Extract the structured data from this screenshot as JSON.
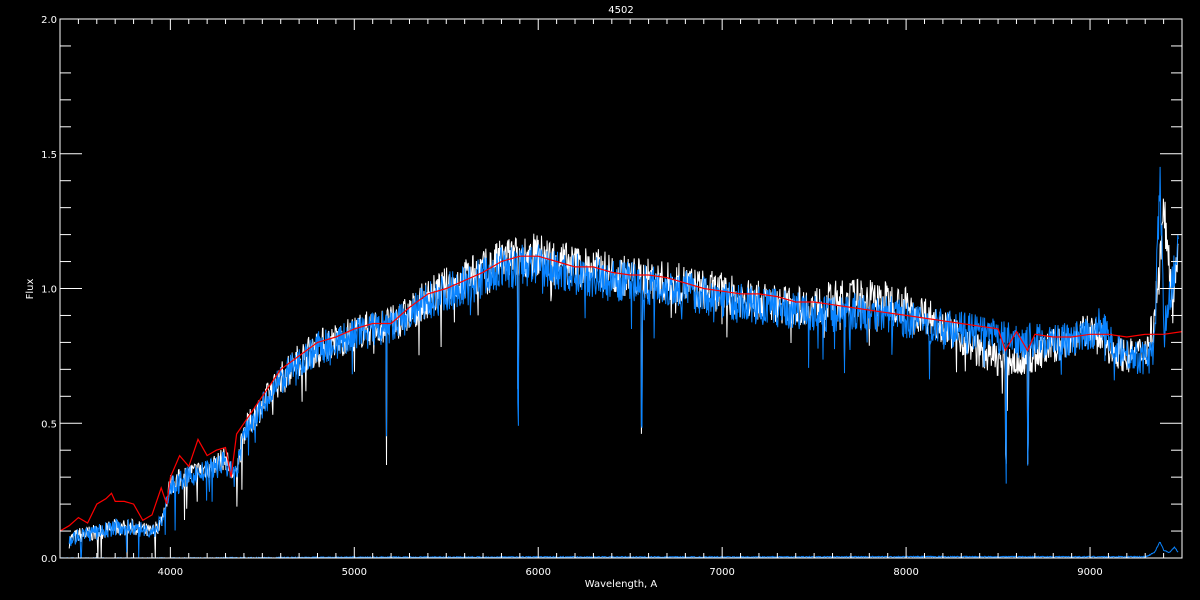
{
  "chart_data": {
    "type": "line",
    "title": "4502",
    "xlabel": "Wavelength, A",
    "ylabel": "Flux",
    "xlim": [
      3400,
      9500
    ],
    "ylim": [
      0.0,
      2.0
    ],
    "xticks": [
      4000,
      5000,
      6000,
      7000,
      8000,
      9000
    ],
    "xtick_labels": [
      "4000",
      "5000",
      "6000",
      "7000",
      "8000",
      "9000"
    ],
    "yticks": [
      0.0,
      0.5,
      1.0,
      1.5,
      2.0
    ],
    "ytick_labels": [
      "0.0",
      "0.5",
      "1.0",
      "1.5",
      "2.0"
    ],
    "x_minor_step": 100,
    "y_minor_step": 0.1,
    "grid": false,
    "background": "#000000",
    "axis_color": "#ffffff",
    "series": [
      {
        "color": "#ffffff",
        "x": [
          3450,
          3500,
          3600,
          3700,
          3800,
          3900,
          3950,
          4000,
          4100,
          4200,
          4300,
          4350,
          4400,
          4500,
          4600,
          4700,
          4800,
          4900,
          5000,
          5100,
          5200,
          5300,
          5400,
          5500,
          5600,
          5700,
          5800,
          5900,
          6000,
          6100,
          6200,
          6300,
          6400,
          6500,
          6600,
          6700,
          6800,
          6900,
          7000,
          7100,
          7200,
          7300,
          7400,
          7500,
          7600,
          7700,
          7800,
          7900,
          8000,
          8100,
          8200,
          8300,
          8400,
          8500,
          8600,
          8700,
          8800,
          8900,
          9000,
          9100,
          9200,
          9300,
          9350,
          9400,
          9450,
          9480
        ],
        "y": [
          0.07,
          0.09,
          0.1,
          0.12,
          0.12,
          0.1,
          0.14,
          0.28,
          0.32,
          0.34,
          0.38,
          0.3,
          0.48,
          0.58,
          0.68,
          0.75,
          0.8,
          0.82,
          0.85,
          0.87,
          0.88,
          0.92,
          0.98,
          1.02,
          1.05,
          1.08,
          1.12,
          1.14,
          1.14,
          1.12,
          1.1,
          1.09,
          1.07,
          1.06,
          1.05,
          1.04,
          1.03,
          1.01,
          1.0,
          0.98,
          0.97,
          0.96,
          0.95,
          0.95,
          0.97,
          0.98,
          0.98,
          0.97,
          0.95,
          0.92,
          0.88,
          0.83,
          0.78,
          0.75,
          0.74,
          0.76,
          0.8,
          0.82,
          0.86,
          0.8,
          0.76,
          0.78,
          0.9,
          1.3,
          1.0,
          1.2
        ]
      },
      {
        "color": "#0a84ff",
        "x": [
          3450,
          3500,
          3600,
          3700,
          3800,
          3900,
          3950,
          4000,
          4100,
          4200,
          4300,
          4350,
          4400,
          4500,
          4600,
          4700,
          4800,
          4900,
          5000,
          5100,
          5200,
          5300,
          5400,
          5500,
          5600,
          5700,
          5800,
          5900,
          6000,
          6100,
          6200,
          6300,
          6400,
          6500,
          6600,
          6700,
          6800,
          6900,
          7000,
          7100,
          7200,
          7300,
          7400,
          7500,
          7600,
          7700,
          7800,
          7900,
          8000,
          8100,
          8200,
          8300,
          8400,
          8500,
          8600,
          8700,
          8800,
          8900,
          9000,
          9050,
          9100,
          9200,
          9300,
          9350,
          9380,
          9400,
          9420,
          9450,
          9480
        ],
        "y": [
          0.07,
          0.09,
          0.1,
          0.12,
          0.12,
          0.1,
          0.14,
          0.27,
          0.31,
          0.33,
          0.37,
          0.3,
          0.47,
          0.57,
          0.67,
          0.74,
          0.79,
          0.81,
          0.84,
          0.86,
          0.87,
          0.91,
          0.97,
          1.0,
          1.03,
          1.06,
          1.09,
          1.1,
          1.1,
          1.08,
          1.07,
          1.06,
          1.05,
          1.04,
          1.03,
          1.02,
          1.01,
          0.99,
          0.98,
          0.96,
          0.95,
          0.94,
          0.93,
          0.92,
          0.92,
          0.93,
          0.93,
          0.92,
          0.9,
          0.88,
          0.87,
          0.86,
          0.85,
          0.83,
          0.82,
          0.82,
          0.82,
          0.82,
          0.84,
          0.88,
          0.83,
          0.77,
          0.75,
          0.8,
          1.45,
          0.9,
          0.92,
          1.05,
          1.2
        ]
      },
      {
        "color": "#ff0000",
        "x": [
          3400,
          3450,
          3500,
          3550,
          3600,
          3650,
          3680,
          3700,
          3750,
          3800,
          3850,
          3900,
          3950,
          3980,
          4000,
          4050,
          4100,
          4150,
          4200,
          4250,
          4300,
          4330,
          4360,
          4400,
          4500,
          4600,
          4700,
          4800,
          4900,
          5000,
          5100,
          5200,
          5300,
          5400,
          5500,
          5600,
          5700,
          5800,
          5900,
          6000,
          6100,
          6200,
          6300,
          6400,
          6500,
          6600,
          6700,
          6800,
          6900,
          7000,
          7100,
          7200,
          7300,
          7400,
          7500,
          7600,
          7700,
          7800,
          7900,
          8000,
          8100,
          8200,
          8300,
          8400,
          8500,
          8540,
          8600,
          8660,
          8700,
          8800,
          8900,
          9000,
          9100,
          9200,
          9300,
          9400,
          9500
        ],
        "y": [
          0.1,
          0.12,
          0.15,
          0.13,
          0.2,
          0.22,
          0.24,
          0.21,
          0.21,
          0.2,
          0.14,
          0.16,
          0.26,
          0.2,
          0.3,
          0.38,
          0.34,
          0.44,
          0.38,
          0.4,
          0.41,
          0.3,
          0.46,
          0.5,
          0.6,
          0.7,
          0.75,
          0.8,
          0.82,
          0.85,
          0.87,
          0.87,
          0.93,
          0.98,
          1.0,
          1.03,
          1.06,
          1.1,
          1.12,
          1.12,
          1.1,
          1.08,
          1.08,
          1.06,
          1.05,
          1.05,
          1.04,
          1.02,
          1.0,
          0.99,
          0.98,
          0.98,
          0.97,
          0.95,
          0.95,
          0.94,
          0.93,
          0.92,
          0.91,
          0.9,
          0.89,
          0.88,
          0.87,
          0.86,
          0.85,
          0.77,
          0.84,
          0.77,
          0.83,
          0.82,
          0.82,
          0.83,
          0.83,
          0.82,
          0.83,
          0.83,
          0.84
        ]
      },
      {
        "color": "#0a84ff",
        "x": [
          3400,
          4000,
          5000,
          6000,
          7000,
          8000,
          9000,
          9300,
          9350,
          9380,
          9400,
          9430,
          9460,
          9480
        ],
        "y": [
          0.0,
          0.0,
          0.003,
          0.004,
          0.004,
          0.005,
          0.005,
          0.005,
          0.02,
          0.06,
          0.03,
          0.02,
          0.04,
          0.02
        ]
      }
    ],
    "absorption_features": [
      {
        "x": 5175,
        "y": 0.4
      },
      {
        "x": 5890,
        "y": 0.57
      },
      {
        "x": 6563,
        "y": 0.53
      },
      {
        "x": 7665,
        "y": 0.7
      },
      {
        "x": 8542,
        "y": 0.4
      },
      {
        "x": 8662,
        "y": 0.42
      }
    ]
  }
}
